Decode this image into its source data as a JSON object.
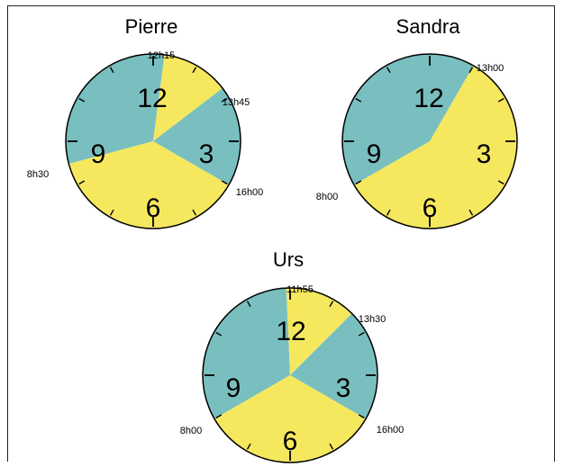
{
  "colors": {
    "teal": "#79bfbf",
    "yellow": "#f5e85f",
    "outline": "#000000"
  },
  "clocks": [
    {
      "title": "Pierre",
      "numbers": [
        "12",
        "3",
        "6",
        "9"
      ],
      "times": [
        "12h15",
        "13h45",
        "16h00",
        "8h30"
      ],
      "segments": [
        {
          "from": "8h30",
          "to": "12h15",
          "color": "teal"
        },
        {
          "from": "12h15",
          "to": "13h45",
          "color": "yellow"
        },
        {
          "from": "13h45",
          "to": "16h00",
          "color": "teal"
        },
        {
          "from": "16h00",
          "to": "8h30",
          "color": "yellow"
        }
      ]
    },
    {
      "title": "Sandra",
      "numbers": [
        "12",
        "3",
        "6",
        "9"
      ],
      "times": [
        "13h00",
        "8h00"
      ],
      "segments": [
        {
          "from": "8h00",
          "to": "13h00",
          "color": "teal"
        },
        {
          "from": "13h00",
          "to": "8h00",
          "color": "yellow"
        }
      ]
    },
    {
      "title": "Urs",
      "numbers": [
        "12",
        "3",
        "6",
        "9"
      ],
      "times": [
        "11h55",
        "13h30",
        "16h00",
        "8h00"
      ],
      "segments": [
        {
          "from": "8h00",
          "to": "11h55",
          "color": "teal"
        },
        {
          "from": "11h55",
          "to": "13h30",
          "color": "yellow"
        },
        {
          "from": "13h30",
          "to": "16h00",
          "color": "teal"
        },
        {
          "from": "16h00",
          "to": "8h00",
          "color": "yellow"
        }
      ]
    }
  ]
}
